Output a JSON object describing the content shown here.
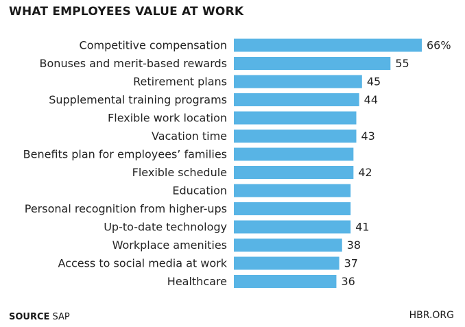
{
  "header": {
    "title": "WHAT EMPLOYEES VALUE AT WORK"
  },
  "footer": {
    "source_key": "SOURCE",
    "source_value": "SAP",
    "brand": "HBR.ORG"
  },
  "colors": {
    "bar": "#58b4e5",
    "text": "#222222"
  },
  "chart_data": {
    "type": "bar",
    "orientation": "horizontal",
    "title": "WHAT EMPLOYEES VALUE AT WORK",
    "categories": [
      "Competitive compensation",
      "Bonuses and merit-based rewards",
      "Retirement plans",
      "Supplemental training programs",
      "Flexible work location",
      "Vacation time",
      "Benefits plan for employees’ families",
      "Flexible schedule",
      "Education",
      "Personal recognition from higher-ups",
      "Up-to-date technology",
      "Workplace amenities",
      "Access to social media at work",
      "Healthcare"
    ],
    "values": [
      66,
      55,
      45,
      44,
      43,
      43,
      42,
      42,
      41,
      41,
      41,
      38,
      37,
      36
    ],
    "value_labels": [
      "66%",
      "55",
      "45",
      "44",
      "",
      "43",
      "",
      "42",
      "",
      "",
      "41",
      "38",
      "37",
      "36"
    ],
    "xlim": [
      0,
      66
    ],
    "grid": false,
    "legend": "none"
  }
}
